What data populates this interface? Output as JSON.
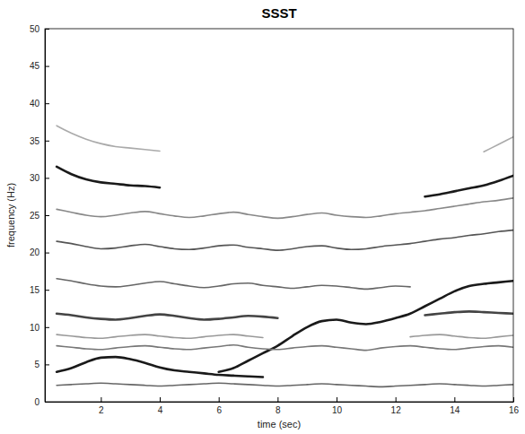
{
  "chart_data": {
    "type": "line",
    "title": "SSST",
    "x_label": "time (sec)",
    "y_label": "frequency (Hz)",
    "xlim": [
      0.1,
      16
    ],
    "xticks": [
      2,
      4,
      6,
      8,
      10,
      12,
      14,
      16
    ],
    "ylim": [
      0,
      50
    ],
    "yticks": [
      0,
      5,
      10,
      15,
      20,
      25,
      30,
      35,
      40,
      45,
      50
    ],
    "grid": false,
    "x": [
      0.5,
      1,
      1.5,
      2,
      2.5,
      3,
      3.5,
      4,
      4.5,
      5,
      5.5,
      6,
      6.5,
      7,
      7.5,
      8,
      8.5,
      9,
      9.5,
      10,
      10.5,
      11,
      11.5,
      12,
      12.5,
      13,
      13.5,
      14,
      14.5,
      15,
      15.5,
      16
    ],
    "series": [
      {
        "color": "#1a1a1a",
        "values": [
          4.0,
          4.5,
          5.3,
          5.9,
          6.0,
          5.7,
          5.2,
          4.6,
          4.2,
          4.0,
          3.8,
          3.6,
          3.5,
          3.4,
          3.3,
          null,
          null,
          null,
          null,
          null,
          null,
          null,
          null,
          null,
          null,
          null,
          null,
          null,
          null,
          null,
          null,
          null
        ]
      },
      {
        "color": "#1a1a1a",
        "values": [
          null,
          null,
          null,
          null,
          null,
          null,
          null,
          null,
          null,
          null,
          null,
          4.0,
          4.5,
          5.5,
          6.5,
          7.5,
          8.8,
          10.0,
          10.8,
          11.0,
          10.6,
          10.4,
          10.7,
          11.2,
          11.8,
          12.8,
          13.8,
          14.8,
          15.5,
          15.8,
          16.0,
          16.2
        ]
      },
      {
        "color": "#444444",
        "values": [
          11.8,
          11.6,
          11.3,
          11.1,
          11.0,
          11.2,
          11.5,
          11.7,
          11.5,
          11.2,
          11.0,
          11.1,
          11.3,
          11.5,
          11.4,
          11.2,
          null,
          null,
          null,
          null,
          null,
          null,
          null,
          null,
          null,
          11.6,
          11.8,
          12.0,
          12.1,
          12.0,
          11.9,
          11.8
        ]
      },
      {
        "color": "#1a1a1a",
        "values": [
          31.5,
          30.5,
          29.8,
          29.4,
          29.2,
          29.0,
          28.9,
          28.7,
          null,
          null,
          null,
          null,
          null,
          null,
          null,
          null,
          null,
          null,
          null,
          null,
          null,
          null,
          null,
          null,
          null,
          27.5,
          27.8,
          28.2,
          28.6,
          29.0,
          29.6,
          30.3
        ]
      },
      {
        "color": "#777777",
        "values": [
          7.5,
          7.3,
          7.1,
          7.0,
          7.2,
          7.4,
          7.5,
          7.3,
          7.1,
          7.0,
          7.2,
          7.4,
          7.6,
          7.3,
          7.1,
          7.0,
          7.2,
          7.4,
          7.5,
          7.3,
          7.1,
          6.9,
          7.2,
          7.4,
          7.5,
          7.3,
          7.1,
          7.0,
          7.2,
          7.4,
          7.5,
          7.3
        ]
      },
      {
        "color": "#666666",
        "values": [
          16.5,
          16.2,
          15.8,
          15.5,
          15.4,
          15.6,
          15.9,
          16.1,
          15.8,
          15.5,
          15.3,
          15.5,
          15.8,
          15.9,
          15.6,
          15.4,
          15.2,
          15.4,
          15.6,
          15.5,
          15.3,
          15.1,
          15.3,
          15.5,
          15.4,
          null,
          null,
          null,
          null,
          null,
          null,
          null
        ]
      },
      {
        "color": "#555555",
        "values": [
          21.5,
          21.2,
          20.8,
          20.5,
          20.6,
          20.9,
          21.1,
          20.8,
          20.5,
          20.4,
          20.6,
          20.9,
          21.0,
          20.7,
          20.5,
          20.3,
          20.5,
          20.8,
          20.9,
          20.6,
          20.4,
          20.5,
          20.8,
          21.0,
          21.2,
          21.5,
          21.8,
          22.0,
          22.3,
          22.5,
          22.8,
          23.0
        ]
      },
      {
        "color": "#888888",
        "values": [
          25.8,
          25.4,
          25.0,
          24.8,
          25.0,
          25.3,
          25.5,
          25.2,
          24.9,
          24.7,
          24.9,
          25.2,
          25.4,
          25.1,
          24.8,
          24.6,
          24.8,
          25.1,
          25.3,
          25.0,
          24.8,
          24.7,
          24.9,
          25.2,
          25.4,
          25.6,
          25.9,
          26.2,
          26.5,
          26.8,
          27.0,
          27.3
        ]
      },
      {
        "color": "#666666",
        "values": [
          2.2,
          2.3,
          2.4,
          2.5,
          2.4,
          2.3,
          2.2,
          2.1,
          2.2,
          2.3,
          2.4,
          2.5,
          2.4,
          2.3,
          2.2,
          2.1,
          2.2,
          2.3,
          2.4,
          2.3,
          2.2,
          2.1,
          2.0,
          2.1,
          2.2,
          2.3,
          2.4,
          2.3,
          2.2,
          2.1,
          2.2,
          2.3
        ]
      },
      {
        "color": "#999999",
        "values": [
          9.0,
          8.8,
          8.6,
          8.5,
          8.7,
          8.9,
          9.0,
          8.8,
          8.6,
          8.5,
          8.7,
          8.9,
          9.0,
          8.8,
          8.6,
          null,
          null,
          null,
          null,
          null,
          null,
          null,
          null,
          null,
          8.7,
          8.9,
          9.0,
          8.8,
          8.6,
          8.5,
          8.7,
          8.9
        ]
      },
      {
        "color": "#aaaaaa",
        "values": [
          37.0,
          36.0,
          35.2,
          34.6,
          34.2,
          34.0,
          33.8,
          33.6,
          null,
          null,
          null,
          null,
          null,
          null,
          null,
          null,
          null,
          null,
          null,
          null,
          null,
          null,
          null,
          null,
          null,
          null,
          null,
          null,
          null,
          33.5,
          34.5,
          35.5
        ]
      }
    ]
  }
}
